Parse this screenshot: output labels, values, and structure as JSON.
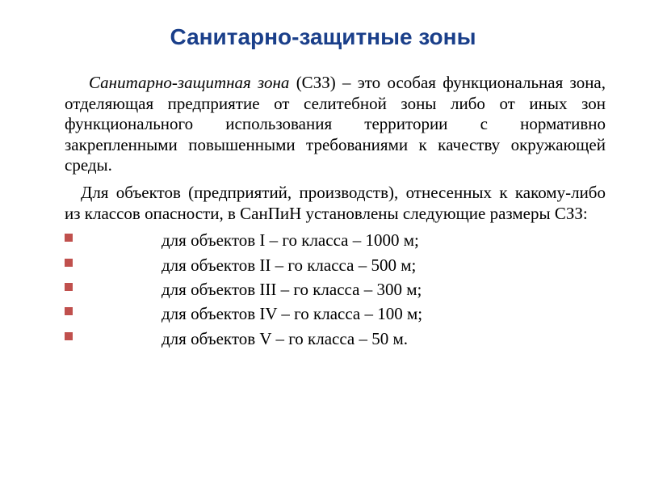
{
  "title": {
    "text": "Санитарно-защитные зоны",
    "color": "#1a3f8a",
    "fontsize": 28
  },
  "definition": {
    "term": "Санитарно-защитная зона",
    "abbrev": "(СЗЗ)",
    "text": " – это особая функциональная зона, отделяющая предприятие от селитебной зоны либо от иных зон функционального использования территории с нормативно закрепленными повышенными требованиями к качеству окружающей среды.",
    "fontsize": 21
  },
  "intro": {
    "text": "Для объектов (предприятий, производств), отнесенных к какому-либо из классов опасности, в СанПиН установлены следующие размеры СЗЗ:",
    "fontsize": 21
  },
  "bullet_color": "#c0504d",
  "bullet_size": 10,
  "items": [
    {
      "text": "для  объектов I – го  класса  – 1000 м;"
    },
    {
      "text": "для  объектов II – го класса  –  500 м;"
    },
    {
      "text": "для  объектов III – го класса –  300 м;"
    },
    {
      "text": "для  объектов IV – го класса –  100 м;"
    },
    {
      "text": "для  объектов  V – го класса  –   50 м."
    }
  ],
  "text_color": "#000000",
  "background_color": "#ffffff"
}
